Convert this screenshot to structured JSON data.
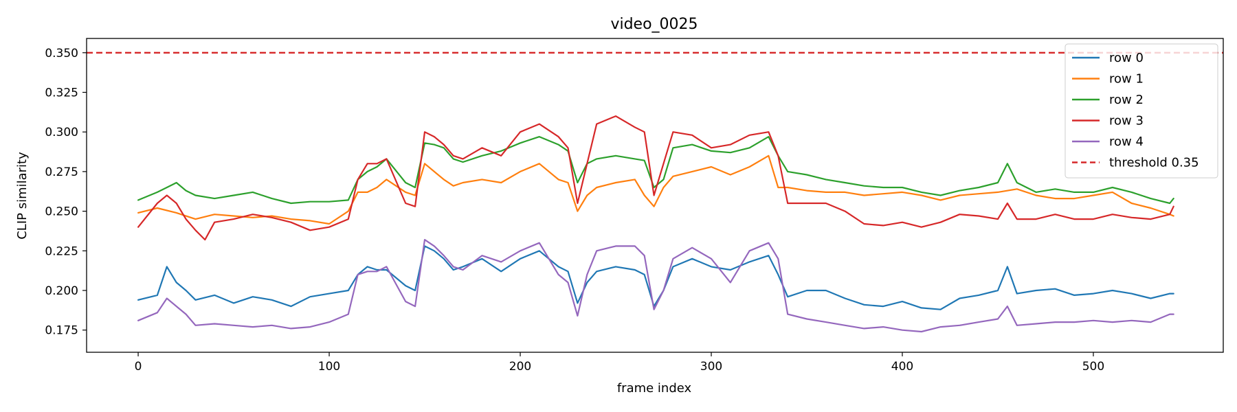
{
  "chart_data": {
    "type": "line",
    "title": "video_0025",
    "xlabel": "frame index",
    "ylabel": "CLIP similarity",
    "xlim": [
      -27,
      568
    ],
    "ylim": [
      0.161,
      0.359
    ],
    "xticks": [
      0,
      100,
      200,
      300,
      400,
      500
    ],
    "yticks": [
      0.175,
      0.2,
      0.225,
      0.25,
      0.275,
      0.3,
      0.325,
      0.35
    ],
    "ytick_labels": [
      "0.175",
      "0.200",
      "0.225",
      "0.250",
      "0.275",
      "0.300",
      "0.325",
      "0.350"
    ],
    "grid": false,
    "legend": {
      "placement": "top-right"
    },
    "threshold": {
      "name": "threshold 0.35",
      "value": 0.35,
      "color": "#d62728",
      "style": "dashed"
    },
    "series": [
      {
        "name": "row 0",
        "color": "#1f77b4",
        "x": [
          0,
          10,
          15,
          20,
          25,
          30,
          40,
          50,
          60,
          70,
          80,
          90,
          100,
          110,
          115,
          120,
          125,
          130,
          140,
          145,
          150,
          155,
          160,
          165,
          170,
          180,
          190,
          200,
          210,
          220,
          225,
          230,
          235,
          240,
          250,
          260,
          265,
          270,
          275,
          280,
          290,
          300,
          310,
          320,
          330,
          335,
          340,
          350,
          360,
          370,
          380,
          390,
          400,
          410,
          420,
          430,
          440,
          450,
          455,
          460,
          470,
          480,
          490,
          500,
          510,
          520,
          530,
          540,
          542
        ],
        "y": [
          0.194,
          0.197,
          0.215,
          0.205,
          0.2,
          0.194,
          0.197,
          0.192,
          0.196,
          0.194,
          0.19,
          0.196,
          0.198,
          0.2,
          0.21,
          0.215,
          0.213,
          0.213,
          0.203,
          0.2,
          0.228,
          0.225,
          0.22,
          0.213,
          0.215,
          0.22,
          0.212,
          0.22,
          0.225,
          0.215,
          0.212,
          0.192,
          0.205,
          0.212,
          0.215,
          0.213,
          0.21,
          0.19,
          0.2,
          0.215,
          0.22,
          0.215,
          0.213,
          0.218,
          0.222,
          0.21,
          0.196,
          0.2,
          0.2,
          0.195,
          0.191,
          0.19,
          0.193,
          0.189,
          0.188,
          0.195,
          0.197,
          0.2,
          0.215,
          0.198,
          0.2,
          0.201,
          0.197,
          0.198,
          0.2,
          0.198,
          0.195,
          0.198,
          0.198
        ]
      },
      {
        "name": "row 1",
        "color": "#ff7f0e",
        "x": [
          0,
          10,
          20,
          30,
          40,
          50,
          60,
          70,
          80,
          90,
          100,
          110,
          115,
          120,
          125,
          130,
          140,
          145,
          150,
          155,
          160,
          165,
          170,
          180,
          190,
          200,
          210,
          220,
          225,
          230,
          235,
          240,
          250,
          260,
          265,
          270,
          275,
          280,
          290,
          300,
          310,
          320,
          330,
          335,
          340,
          350,
          360,
          370,
          380,
          390,
          400,
          410,
          420,
          430,
          440,
          450,
          460,
          470,
          480,
          490,
          500,
          510,
          520,
          530,
          540,
          542
        ],
        "y": [
          0.249,
          0.252,
          0.249,
          0.245,
          0.248,
          0.247,
          0.246,
          0.247,
          0.245,
          0.244,
          0.242,
          0.25,
          0.262,
          0.262,
          0.265,
          0.27,
          0.262,
          0.26,
          0.28,
          0.275,
          0.27,
          0.266,
          0.268,
          0.27,
          0.268,
          0.275,
          0.28,
          0.27,
          0.268,
          0.25,
          0.26,
          0.265,
          0.268,
          0.27,
          0.26,
          0.253,
          0.265,
          0.272,
          0.275,
          0.278,
          0.273,
          0.278,
          0.285,
          0.265,
          0.265,
          0.263,
          0.262,
          0.262,
          0.26,
          0.261,
          0.262,
          0.26,
          0.257,
          0.26,
          0.261,
          0.262,
          0.264,
          0.26,
          0.258,
          0.258,
          0.26,
          0.262,
          0.255,
          0.252,
          0.248,
          0.247
        ]
      },
      {
        "name": "row 2",
        "color": "#2ca02c",
        "x": [
          0,
          10,
          15,
          20,
          25,
          30,
          40,
          50,
          60,
          70,
          80,
          90,
          100,
          110,
          115,
          120,
          125,
          130,
          140,
          145,
          150,
          155,
          160,
          165,
          170,
          180,
          190,
          200,
          210,
          220,
          225,
          230,
          235,
          240,
          250,
          260,
          265,
          270,
          275,
          280,
          290,
          300,
          310,
          320,
          330,
          335,
          340,
          350,
          360,
          370,
          380,
          390,
          400,
          410,
          420,
          430,
          440,
          450,
          455,
          460,
          470,
          480,
          490,
          500,
          510,
          520,
          530,
          540,
          542
        ],
        "y": [
          0.257,
          0.262,
          0.265,
          0.268,
          0.263,
          0.26,
          0.258,
          0.26,
          0.262,
          0.258,
          0.255,
          0.256,
          0.256,
          0.257,
          0.27,
          0.275,
          0.278,
          0.283,
          0.268,
          0.265,
          0.293,
          0.292,
          0.29,
          0.283,
          0.281,
          0.285,
          0.288,
          0.293,
          0.297,
          0.292,
          0.288,
          0.268,
          0.28,
          0.283,
          0.285,
          0.283,
          0.282,
          0.265,
          0.27,
          0.29,
          0.292,
          0.288,
          0.287,
          0.29,
          0.297,
          0.285,
          0.275,
          0.273,
          0.27,
          0.268,
          0.266,
          0.265,
          0.265,
          0.262,
          0.26,
          0.263,
          0.265,
          0.268,
          0.28,
          0.268,
          0.262,
          0.264,
          0.262,
          0.262,
          0.265,
          0.262,
          0.258,
          0.255,
          0.258
        ]
      },
      {
        "name": "row 3",
        "color": "#d62728",
        "x": [
          0,
          10,
          15,
          20,
          25,
          30,
          35,
          40,
          50,
          60,
          70,
          80,
          90,
          100,
          110,
          115,
          120,
          125,
          130,
          140,
          145,
          150,
          155,
          160,
          165,
          170,
          180,
          190,
          200,
          210,
          220,
          225,
          230,
          235,
          240,
          250,
          260,
          265,
          270,
          275,
          280,
          290,
          300,
          310,
          320,
          330,
          335,
          340,
          350,
          360,
          370,
          380,
          390,
          400,
          410,
          420,
          430,
          440,
          450,
          455,
          460,
          470,
          480,
          490,
          500,
          510,
          520,
          530,
          540,
          542
        ],
        "y": [
          0.24,
          0.255,
          0.26,
          0.255,
          0.245,
          0.238,
          0.232,
          0.243,
          0.245,
          0.248,
          0.246,
          0.243,
          0.238,
          0.24,
          0.245,
          0.27,
          0.28,
          0.28,
          0.283,
          0.255,
          0.253,
          0.3,
          0.297,
          0.292,
          0.285,
          0.283,
          0.29,
          0.285,
          0.3,
          0.305,
          0.297,
          0.29,
          0.255,
          0.28,
          0.305,
          0.31,
          0.303,
          0.3,
          0.26,
          0.28,
          0.3,
          0.298,
          0.29,
          0.292,
          0.298,
          0.3,
          0.285,
          0.255,
          0.255,
          0.255,
          0.25,
          0.242,
          0.241,
          0.243,
          0.24,
          0.243,
          0.248,
          0.247,
          0.245,
          0.255,
          0.245,
          0.245,
          0.248,
          0.245,
          0.245,
          0.248,
          0.246,
          0.245,
          0.248,
          0.253
        ]
      },
      {
        "name": "row 4",
        "color": "#9467bd",
        "x": [
          0,
          10,
          15,
          20,
          25,
          30,
          40,
          50,
          60,
          70,
          80,
          90,
          100,
          110,
          115,
          120,
          125,
          130,
          140,
          145,
          150,
          155,
          160,
          165,
          170,
          180,
          190,
          200,
          210,
          220,
          225,
          230,
          235,
          240,
          250,
          260,
          265,
          270,
          275,
          280,
          290,
          300,
          310,
          320,
          330,
          335,
          340,
          350,
          360,
          370,
          380,
          390,
          400,
          410,
          420,
          430,
          440,
          450,
          455,
          460,
          470,
          480,
          490,
          500,
          510,
          520,
          530,
          540,
          542
        ],
        "y": [
          0.181,
          0.186,
          0.195,
          0.19,
          0.185,
          0.178,
          0.179,
          0.178,
          0.177,
          0.178,
          0.176,
          0.177,
          0.18,
          0.185,
          0.21,
          0.212,
          0.212,
          0.215,
          0.193,
          0.19,
          0.232,
          0.228,
          0.222,
          0.215,
          0.213,
          0.222,
          0.218,
          0.225,
          0.23,
          0.21,
          0.205,
          0.184,
          0.21,
          0.225,
          0.228,
          0.228,
          0.222,
          0.188,
          0.2,
          0.22,
          0.227,
          0.22,
          0.205,
          0.225,
          0.23,
          0.22,
          0.185,
          0.182,
          0.18,
          0.178,
          0.176,
          0.177,
          0.175,
          0.174,
          0.177,
          0.178,
          0.18,
          0.182,
          0.19,
          0.178,
          0.179,
          0.18,
          0.18,
          0.181,
          0.18,
          0.181,
          0.18,
          0.185,
          0.185
        ]
      }
    ]
  }
}
